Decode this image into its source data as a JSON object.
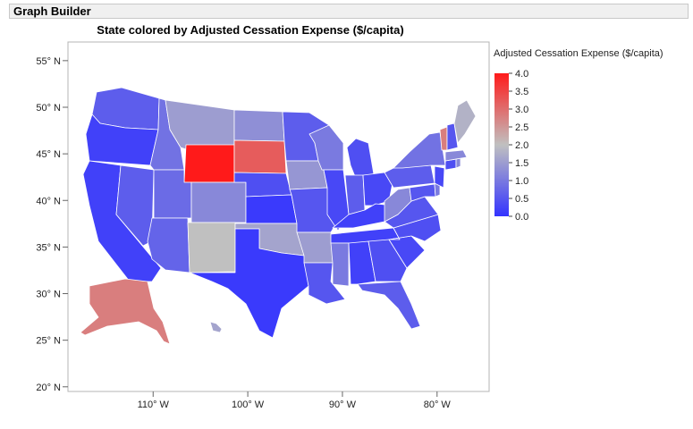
{
  "app": {
    "title": "Graph Builder"
  },
  "chart_data": {
    "type": "choropleth-map",
    "title": "State colored by Adjusted Cessation Expense ($/capita)",
    "legend": {
      "title": "Adjusted Cessation Expense ($/capita)",
      "placement": "right",
      "ticks": [
        "4.0",
        "3.5",
        "3.0",
        "2.5",
        "2.0",
        "1.5",
        "1.0",
        "0.5",
        "0.0"
      ],
      "range": [
        0,
        4
      ],
      "colors": {
        "low": "#3333ff",
        "mid": "#c0c0c0",
        "high": "#ff1a1a"
      }
    },
    "y_ticks": [
      "55° N",
      "50° N",
      "45° N",
      "40° N",
      "35° N",
      "30° N",
      "25° N",
      "20° N"
    ],
    "y_values": [
      55,
      50,
      45,
      40,
      35,
      30,
      25,
      20
    ],
    "ylim": [
      19.5,
      57
    ],
    "x_ticks": [
      "110° W",
      "100° W",
      "90° W",
      "80° W"
    ],
    "x_values": [
      -110,
      -100,
      -90,
      -80
    ],
    "xlim": [
      -119,
      -74.5
    ],
    "grid": false,
    "states": [
      {
        "name": "Washington",
        "v": 0.6
      },
      {
        "name": "Oregon",
        "v": 0.2
      },
      {
        "name": "California",
        "v": 0.2
      },
      {
        "name": "Nevada",
        "v": 0.6
      },
      {
        "name": "Idaho",
        "v": 0.9
      },
      {
        "name": "Montana",
        "v": 1.5
      },
      {
        "name": "Wyoming",
        "v": 4.0
      },
      {
        "name": "Utah",
        "v": 0.8
      },
      {
        "name": "Colorado",
        "v": 1.2
      },
      {
        "name": "Arizona",
        "v": 0.7
      },
      {
        "name": "New Mexico",
        "v": 2.0
      },
      {
        "name": "North Dakota",
        "v": 1.3
      },
      {
        "name": "South Dakota",
        "v": 3.2
      },
      {
        "name": "Nebraska",
        "v": 0.4
      },
      {
        "name": "Kansas",
        "v": 0.1
      },
      {
        "name": "Oklahoma",
        "v": 1.6
      },
      {
        "name": "Texas",
        "v": 0.1
      },
      {
        "name": "Minnesota",
        "v": 0.6
      },
      {
        "name": "Iowa",
        "v": 1.4
      },
      {
        "name": "Missouri",
        "v": 0.5
      },
      {
        "name": "Arkansas",
        "v": 1.5
      },
      {
        "name": "Louisiana",
        "v": 0.5
      },
      {
        "name": "Wisconsin",
        "v": 1.0
      },
      {
        "name": "Illinois",
        "v": 0.3
      },
      {
        "name": "Michigan",
        "v": 0.4
      },
      {
        "name": "Indiana",
        "v": 0.6
      },
      {
        "name": "Ohio",
        "v": 0.3
      },
      {
        "name": "Kentucky",
        "v": 0.2
      },
      {
        "name": "Tennessee",
        "v": 0.2
      },
      {
        "name": "Mississippi",
        "v": 1.0
      },
      {
        "name": "Alabama",
        "v": 0.2
      },
      {
        "name": "Georgia",
        "v": 0.4
      },
      {
        "name": "Florida",
        "v": 0.6
      },
      {
        "name": "South Carolina",
        "v": 0.3
      },
      {
        "name": "North Carolina",
        "v": 0.4
      },
      {
        "name": "Virginia",
        "v": 0.5
      },
      {
        "name": "West Virginia",
        "v": 1.2
      },
      {
        "name": "Pennsylvania",
        "v": 0.6
      },
      {
        "name": "New York",
        "v": 0.9
      },
      {
        "name": "Maryland",
        "v": 0.5
      },
      {
        "name": "Delaware",
        "v": 1.0
      },
      {
        "name": "New Jersey",
        "v": 0.3
      },
      {
        "name": "Connecticut",
        "v": 0.4
      },
      {
        "name": "Rhode Island",
        "v": 1.2
      },
      {
        "name": "Massachusetts",
        "v": 1.2
      },
      {
        "name": "Vermont",
        "v": 2.8
      },
      {
        "name": "New Hampshire",
        "v": 0.5
      },
      {
        "name": "Maine",
        "v": 1.8
      },
      {
        "name": "Alaska",
        "v": 2.8
      },
      {
        "name": "Hawaii",
        "v": 1.6
      }
    ]
  }
}
